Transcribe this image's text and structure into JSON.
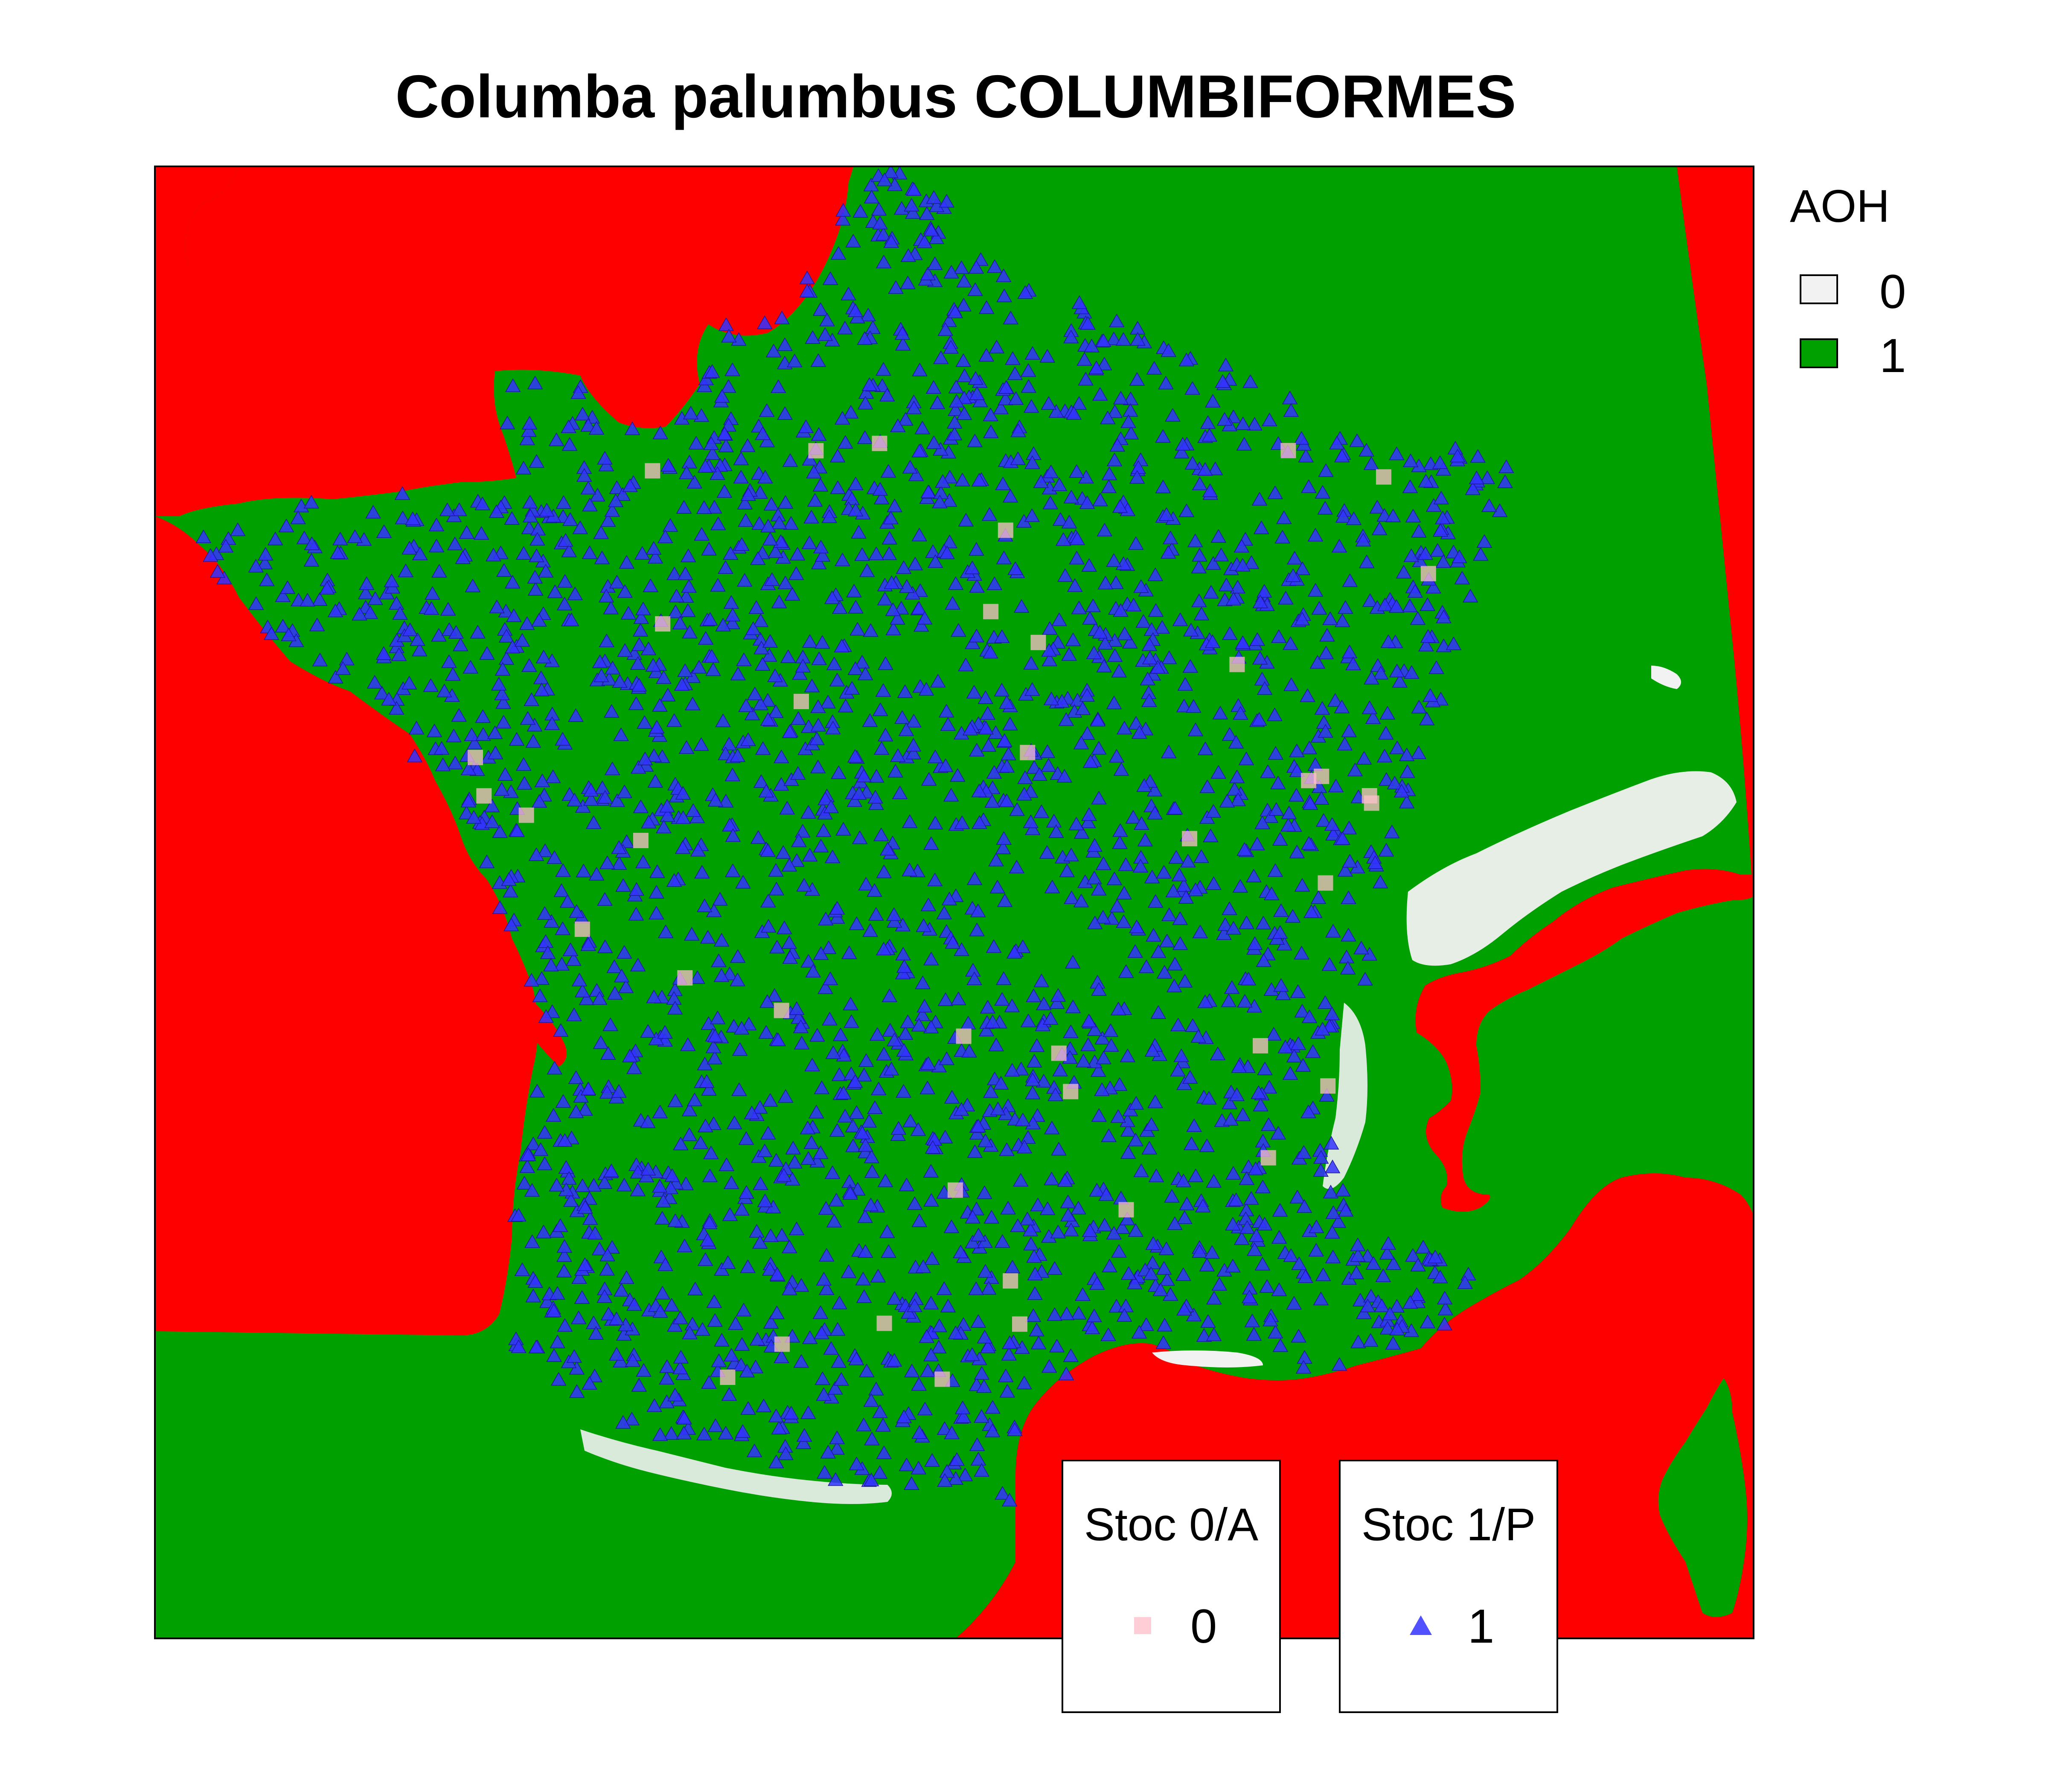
{
  "title": "Columba palumbus COLUMBIFORMES",
  "colors": {
    "sea_red": "#ff0000",
    "aoh_1_green": "#00a000",
    "aoh_0_white": "#f2f2f2",
    "stoc_0_pink": "#ffc0cb",
    "stoc_1_blue": "#3333ff",
    "frame": "#000000"
  },
  "legend_aoh": {
    "title": "AOH",
    "items": [
      {
        "label": "0",
        "color": "#f2f2f2"
      },
      {
        "label": "1",
        "color": "#00a000"
      }
    ]
  },
  "legend_stoc0": {
    "title": "Stoc 0/A",
    "label": "0",
    "symbol": "square",
    "color": "#ffc0cb"
  },
  "legend_stoc1": {
    "title": "Stoc 1/P",
    "label": "1",
    "symbol": "triangle",
    "color": "#3333ff"
  },
  "chart_data": {
    "type": "scatter",
    "basemap": "France AOH raster (red = outside, green = AOH 1, white = AOH 0)",
    "series": [
      {
        "name": "0",
        "legend": "Stoc 0/A",
        "symbol": "square",
        "approx_count": 40
      },
      {
        "name": "1",
        "legend": "Stoc 1/P",
        "symbol": "triangle",
        "approx_count": 2600
      }
    ]
  }
}
